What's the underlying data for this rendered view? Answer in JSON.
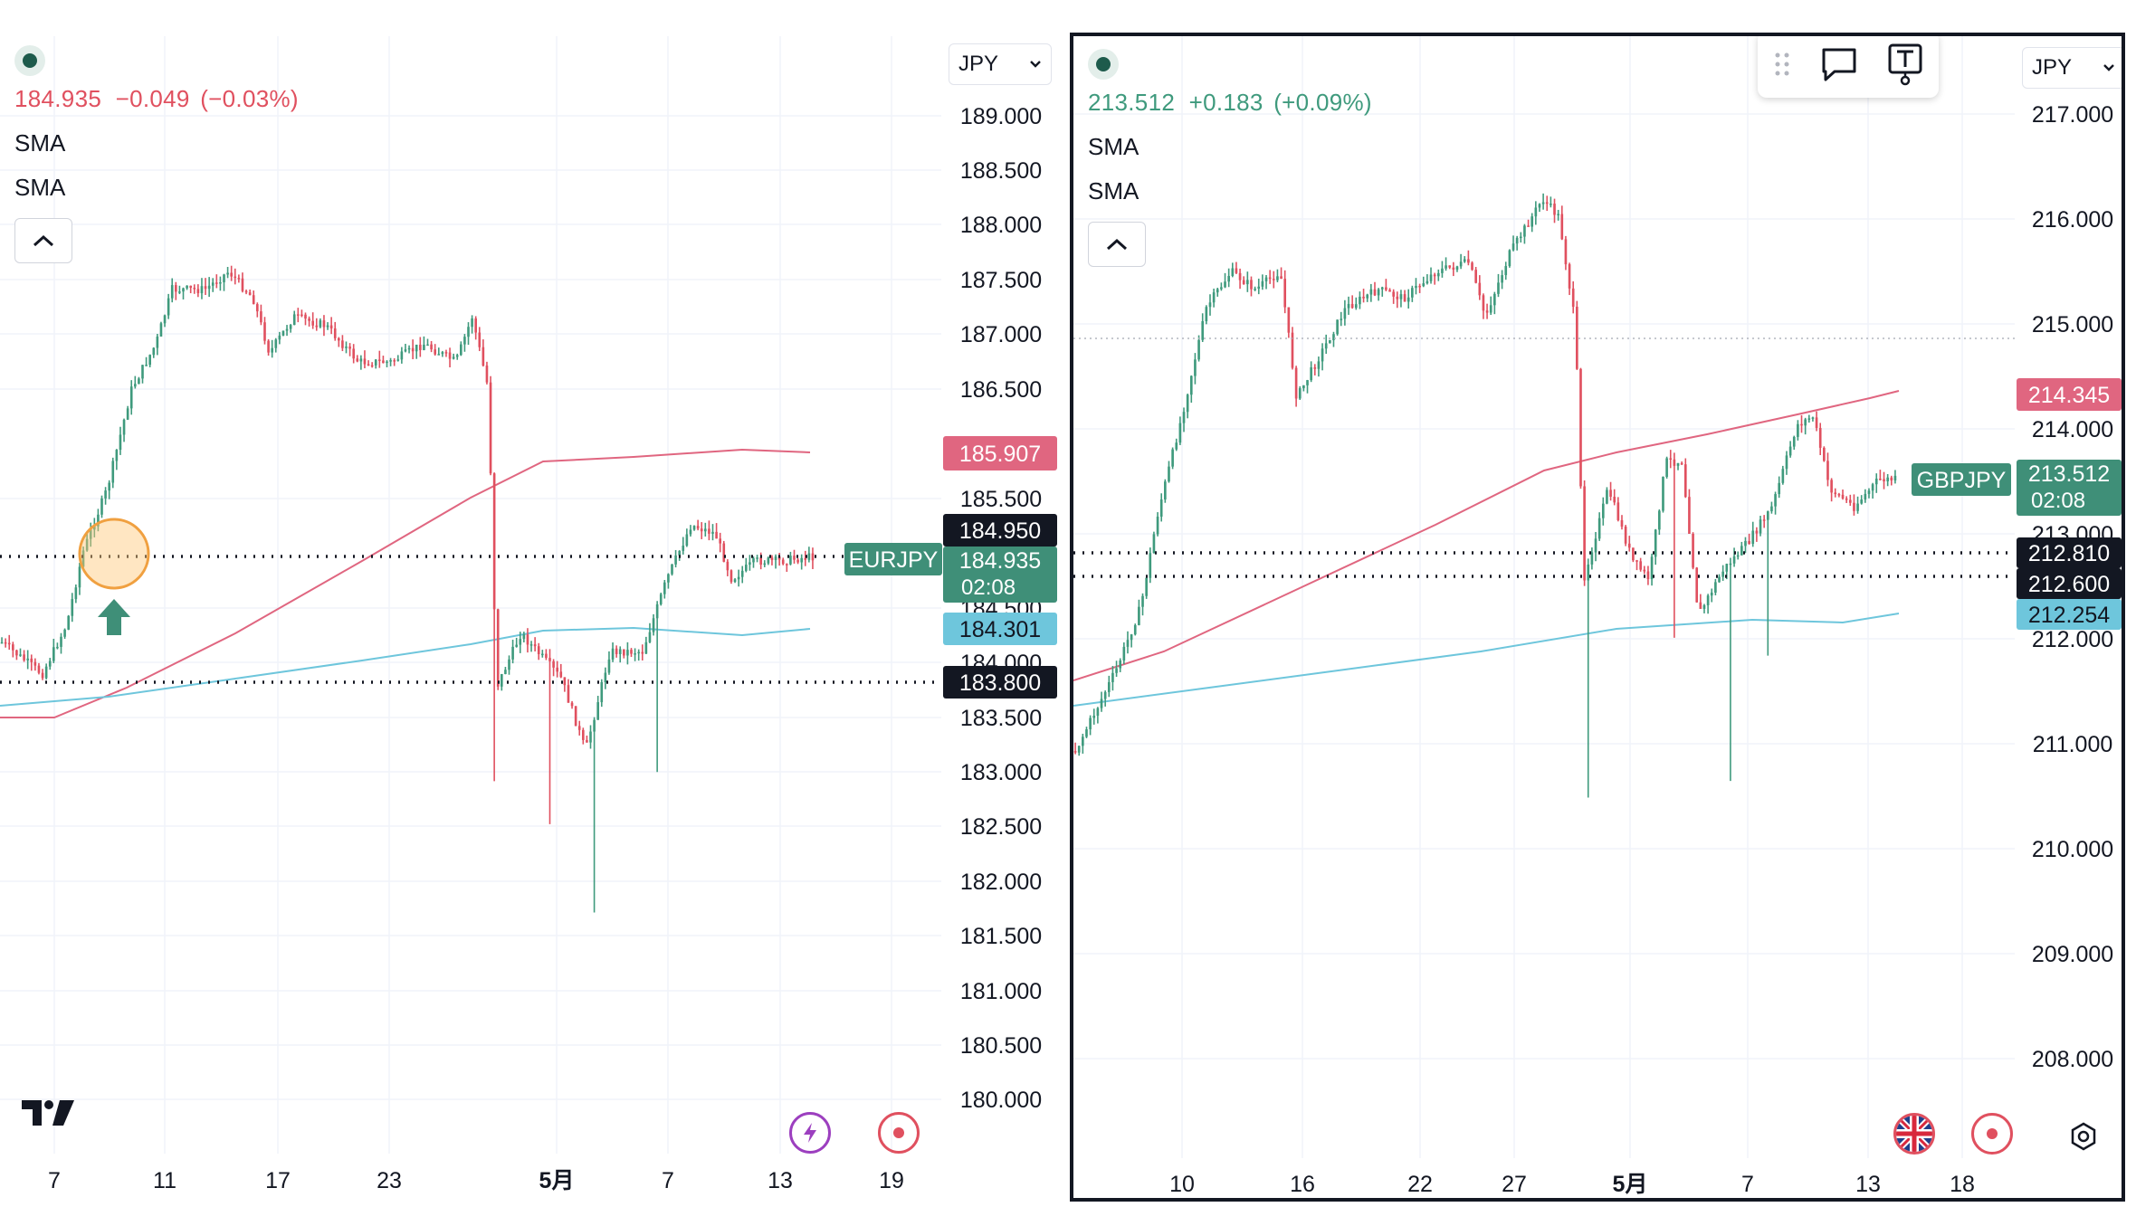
{
  "left": {
    "legend": {
      "price": "184.935",
      "change": "−0.049",
      "change_pct": "(−0.03%)",
      "sma1": "SMA",
      "sma2": "SMA"
    },
    "currency": "JPY",
    "symbol": "EURJPY",
    "price_labels": {
      "sma_red": "185.907",
      "bid": "184.950",
      "current": "184.935",
      "countdown": "02:08",
      "sma_blue": "184.301",
      "level": "183.800"
    },
    "y_ticks": [
      "189.000",
      "188.500",
      "188.000",
      "187.500",
      "187.000",
      "186.500",
      "185.500",
      "184.500",
      "184.000",
      "183.500",
      "183.000",
      "182.500",
      "182.000",
      "181.500",
      "181.000",
      "180.500",
      "180.000"
    ],
    "x_ticks": [
      "7",
      "11",
      "17",
      "23",
      "5月",
      "7",
      "13",
      "19"
    ]
  },
  "right": {
    "legend": {
      "price": "213.512",
      "change": "+0.183",
      "change_pct": "(+0.09%)",
      "sma1": "SMA",
      "sma2": "SMA"
    },
    "currency": "JPY",
    "symbol": "GBPJPY",
    "price_labels": {
      "sma_red": "214.345",
      "current": "213.512",
      "countdown": "02:08",
      "level1": "212.810",
      "level2": "212.600",
      "sma_blue": "212.254"
    },
    "y_ticks": [
      "217.000",
      "216.000",
      "215.000",
      "214.000",
      "213.000",
      "212.000",
      "211.000",
      "210.000",
      "209.000",
      "208.000"
    ],
    "x_ticks": [
      "10",
      "16",
      "22",
      "27",
      "5月",
      "7",
      "13",
      "18"
    ]
  },
  "colors": {
    "up": "#3f9a7d",
    "down": "#e0505f",
    "sma_red": "#e06680",
    "sma_blue": "#6ec6dc",
    "label_green": "#3f8f78",
    "label_black": "#131722"
  },
  "icons": [
    "tradingview-logo-icon",
    "lightning-icon",
    "record-icon",
    "uk-flag-icon",
    "drag-handle-icon",
    "comment-icon",
    "text-tool-icon",
    "settings-icon",
    "chevron-up-icon",
    "chevron-down-icon"
  ]
}
